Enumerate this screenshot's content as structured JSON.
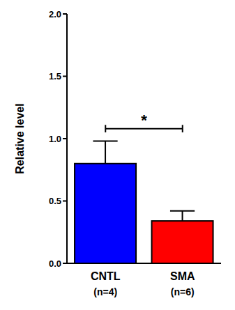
{
  "chart_data": {
    "type": "bar",
    "y_label": "Relative level",
    "categories": [
      "CNTL",
      "SMA"
    ],
    "values": [
      0.8,
      0.34
    ],
    "errors": [
      0.18,
      0.08
    ],
    "colors": [
      "#0000FF",
      "#FF0000"
    ],
    "sample_sizes": [
      {
        "value": 4,
        "label": "(n=4)"
      },
      {
        "value": 6,
        "label": "(n=6)"
      }
    ],
    "ylim": [
      0,
      2
    ],
    "yticks": [
      {
        "value": 0,
        "label": "0.0"
      },
      {
        "value": 0.5,
        "label": "0.5"
      },
      {
        "value": 1,
        "label": "1.0"
      },
      {
        "value": 1.5,
        "label": "1.5"
      },
      {
        "value": 2,
        "label": "2.0"
      }
    ],
    "annotations": [
      {
        "text": "*",
        "between": [
          "CNTL",
          "SMA"
        ]
      }
    ],
    "grid": false
  }
}
